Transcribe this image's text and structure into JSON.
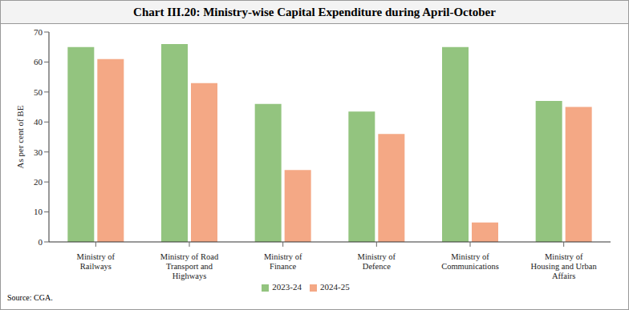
{
  "chart_data": {
    "type": "bar",
    "title": "Chart III.20: Ministry-wise Capital Expenditure during April-October",
    "y_label": "As per cent of BE",
    "source": "Source: CGA.",
    "categories": [
      "Ministry of Railways",
      "Ministry of Road Transport and Highways",
      "Ministry of Finance",
      "Ministry of Defence",
      "Ministry of Communications",
      "Ministry of Housing and Urban Affairs"
    ],
    "series": [
      {
        "name": "2023-24",
        "color": "#93c47f",
        "values": [
          65,
          66,
          46,
          43.5,
          65,
          47
        ]
      },
      {
        "name": "2024-25",
        "color": "#f4a885",
        "values": [
          61,
          53,
          24,
          36,
          6.5,
          45
        ]
      }
    ],
    "ylim": [
      0,
      70
    ],
    "yticks": [
      0,
      10,
      20,
      30,
      40,
      50,
      60,
      70
    ],
    "grid": false,
    "legend": "bottom"
  }
}
